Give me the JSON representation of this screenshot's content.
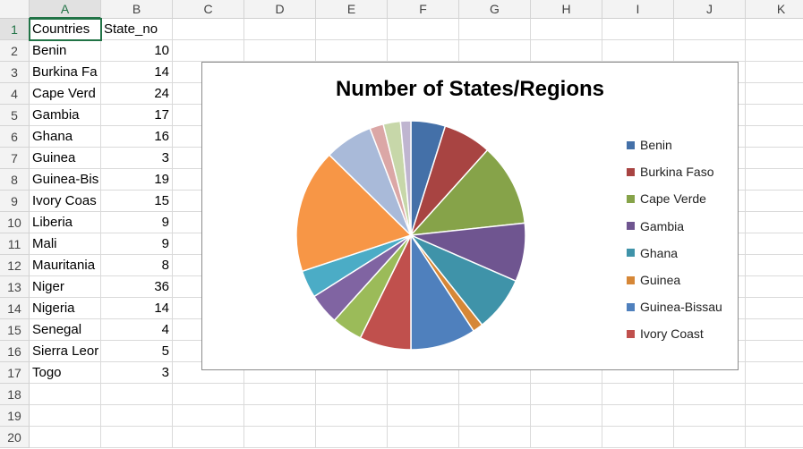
{
  "columns": [
    "A",
    "B",
    "C",
    "D",
    "E",
    "F",
    "G",
    "H",
    "I",
    "J",
    "K"
  ],
  "rows": [
    "1",
    "2",
    "3",
    "4",
    "5",
    "6",
    "7",
    "8",
    "9",
    "10",
    "11",
    "12",
    "13",
    "14",
    "15",
    "16",
    "17",
    "18",
    "19",
    "20"
  ],
  "table": {
    "headers": [
      "Countries",
      "State_no"
    ],
    "rows": [
      {
        "country": "Benin",
        "display": "Benin",
        "value": "10"
      },
      {
        "country": "Burkina Faso",
        "display": "Burkina Fa",
        "value": "14"
      },
      {
        "country": "Cape Verde",
        "display": "Cape Verd",
        "value": "24"
      },
      {
        "country": "Gambia",
        "display": "Gambia",
        "value": "17"
      },
      {
        "country": "Ghana",
        "display": "Ghana",
        "value": "16"
      },
      {
        "country": "Guinea",
        "display": "Guinea",
        "value": "3"
      },
      {
        "country": "Guinea-Bissau",
        "display": "Guinea-Bis",
        "value": "19"
      },
      {
        "country": "Ivory Coast",
        "display": "Ivory Coas",
        "value": "15"
      },
      {
        "country": "Liberia",
        "display": "Liberia",
        "value": "9"
      },
      {
        "country": "Mali",
        "display": "Mali",
        "value": "9"
      },
      {
        "country": "Mauritania",
        "display": "Mauritania",
        "value": "8"
      },
      {
        "country": "Niger",
        "display": "Niger",
        "value": "36"
      },
      {
        "country": "Nigeria",
        "display": "Nigeria",
        "value": "14"
      },
      {
        "country": "Senegal",
        "display": "Senegal",
        "value": "4"
      },
      {
        "country": "Sierra Leone",
        "display": "Sierra Leor",
        "value": "5"
      },
      {
        "country": "Togo",
        "display": "Togo",
        "value": "3"
      }
    ]
  },
  "colors": [
    "#4470a8",
    "#a84442",
    "#86a349",
    "#6f5590",
    "#3f93a9",
    "#d68737",
    "#4f80bd",
    "#c0504d",
    "#9bbb59",
    "#8064a2",
    "#4bacc6",
    "#f79646",
    "#a9bad9",
    "#dba7a6",
    "#c7d7a9",
    "#bfb5d0"
  ],
  "legend_visible": [
    "Benin",
    "Burkina Faso",
    "Cape Verde",
    "Gambia",
    "Ghana",
    "Guinea",
    "Guinea-Bissau",
    "Ivory Coast"
  ],
  "chart_data": {
    "type": "pie",
    "title": "Number of States/Regions",
    "categories": [
      "Benin",
      "Burkina Faso",
      "Cape Verde",
      "Gambia",
      "Ghana",
      "Guinea",
      "Guinea-Bissau",
      "Ivory Coast",
      "Liberia",
      "Mali",
      "Mauritania",
      "Niger",
      "Nigeria",
      "Senegal",
      "Sierra Leone",
      "Togo"
    ],
    "values": [
      10,
      14,
      24,
      17,
      16,
      3,
      19,
      15,
      9,
      9,
      8,
      36,
      14,
      4,
      5,
      3
    ],
    "legend": "right"
  }
}
